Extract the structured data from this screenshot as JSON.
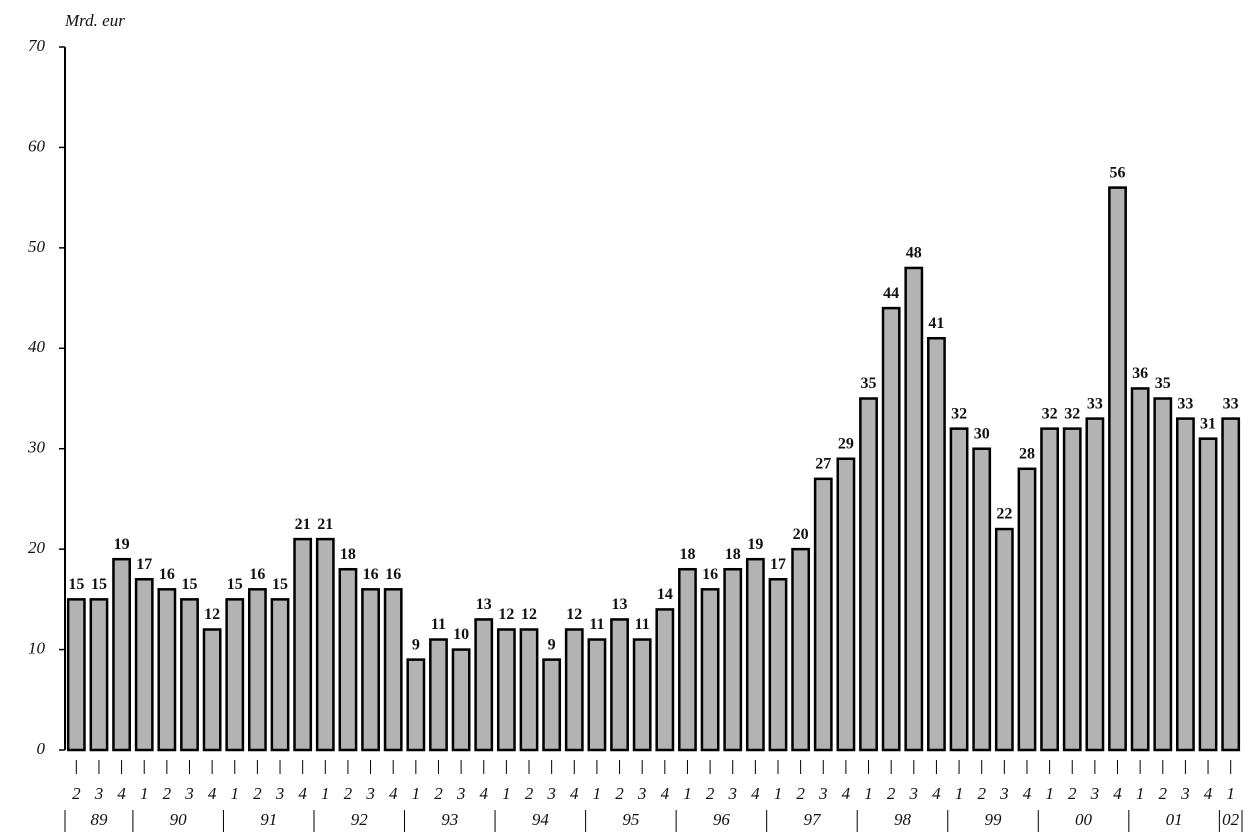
{
  "chart_data": {
    "type": "bar",
    "ylabel": "Mrd. eur",
    "categories": [
      "2",
      "3",
      "4",
      "1",
      "2",
      "3",
      "4",
      "1",
      "2",
      "3",
      "4",
      "1",
      "2",
      "3",
      "4",
      "1",
      "2",
      "3",
      "4",
      "1",
      "2",
      "3",
      "4",
      "1",
      "2",
      "3",
      "4",
      "1",
      "2",
      "3",
      "4",
      "1",
      "2",
      "3",
      "4",
      "1",
      "2",
      "3",
      "4",
      "1",
      "2",
      "3",
      "4",
      "1",
      "2",
      "3",
      "4",
      "1",
      "2",
      "3",
      "4",
      "1"
    ],
    "years": [
      "89",
      "90",
      "91",
      "92",
      "93",
      "94",
      "95",
      "96",
      "97",
      "98",
      "99",
      "00",
      "01",
      "02"
    ],
    "values": [
      15,
      15,
      19,
      17,
      16,
      15,
      12,
      15,
      16,
      15,
      21,
      21,
      18,
      16,
      16,
      9,
      11,
      10,
      13,
      12,
      12,
      9,
      12,
      11,
      13,
      11,
      14,
      18,
      16,
      18,
      19,
      17,
      20,
      27,
      29,
      35,
      44,
      48,
      41,
      32,
      30,
      22,
      28,
      32,
      32,
      33,
      56,
      36,
      35,
      33,
      31,
      33
    ],
    "color": "#b3b3b3",
    "ylim": [
      0,
      70
    ],
    "yticks": [
      0,
      10,
      20,
      30,
      40,
      50,
      60,
      70
    ],
    "grid": false
  }
}
